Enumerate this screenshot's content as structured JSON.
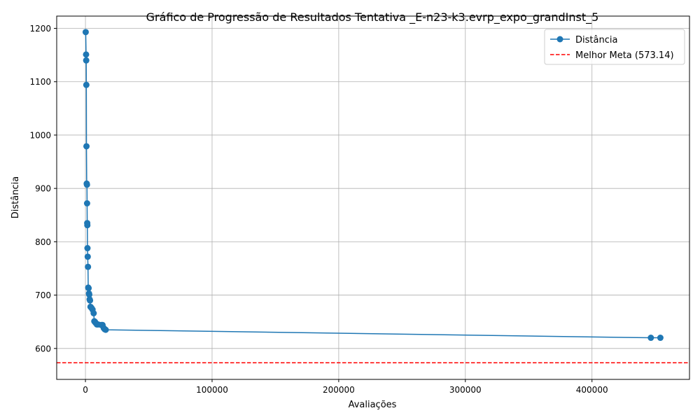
{
  "chart_data": {
    "type": "line",
    "title": "Gráfico de Progressão de Resultados Tentativa _E-n23-k3.evrp_expo_grandInst_5",
    "xlabel": "Avaliações",
    "ylabel": "Distância",
    "xlim": [
      -22700,
      477000
    ],
    "ylim": [
      542,
      1223
    ],
    "xticks": [
      0,
      100000,
      200000,
      300000,
      400000
    ],
    "xtick_labels": [
      "0",
      "100000",
      "200000",
      "300000",
      "400000"
    ],
    "yticks": [
      600,
      700,
      800,
      900,
      1000,
      1100,
      1200
    ],
    "ytick_labels": [
      "600",
      "700",
      "800",
      "900",
      "1000",
      "1100",
      "1200"
    ],
    "grid": true,
    "legend_position": "top-right",
    "series": [
      {
        "name": "Distância",
        "color": "#1f77b4",
        "marker": "circle",
        "x": [
          200,
          500,
          600,
          700,
          800,
          1000,
          1200,
          1300,
          1400,
          1500,
          1600,
          1800,
          2000,
          2200,
          2500,
          2800,
          3000,
          3300,
          3600,
          4000,
          4800,
          5600,
          6500,
          7000,
          7500,
          8000,
          9000,
          10000,
          12500,
          13500,
          14500,
          15200,
          16000,
          446500,
          454000
        ],
        "y": [
          1193,
          1151,
          1140,
          1094,
          979,
          909,
          907,
          872,
          835,
          831,
          788,
          772,
          753,
          714,
          713,
          703,
          701,
          692,
          690,
          678,
          676,
          673,
          666,
          651,
          650,
          648,
          645,
          645,
          644,
          644,
          638,
          636,
          635,
          620,
          620
        ]
      }
    ],
    "reference_lines": [
      {
        "name": "Melhor Meta (573.14)",
        "value": 573.14,
        "color": "#ff0000",
        "style": "dashed"
      }
    ]
  }
}
